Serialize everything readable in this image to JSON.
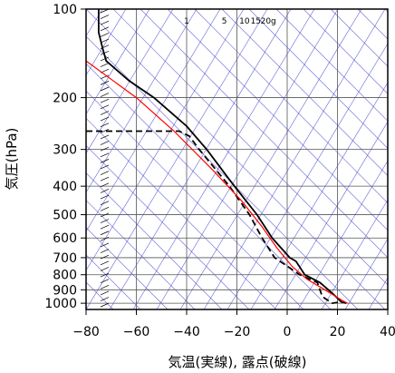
{
  "chart_data": {
    "type": "line",
    "subtype": "skew-T log-P thermodynamic diagram",
    "xlabel": "気温(実線), 露点(破線)",
    "ylabel": "気圧(hPa)",
    "xlim": [
      -80,
      40
    ],
    "ylim": [
      1050,
      100
    ],
    "y_scale": "log",
    "x_ticks": [
      -80,
      -60,
      -40,
      -20,
      0,
      20,
      40
    ],
    "y_ticks": [
      100,
      200,
      300,
      400,
      500,
      600,
      700,
      800,
      900,
      1000
    ],
    "grid": true,
    "mixing_ratio_labels": [
      {
        "label": "1",
        "temperature": -40
      },
      {
        "label": "5",
        "temperature": -25
      },
      {
        "label": "10",
        "temperature": -17
      },
      {
        "label": "15",
        "temperature": -12.5
      },
      {
        "label": "20g",
        "temperature": -7.5
      }
    ],
    "series": [
      {
        "style": "solid",
        "color": "#000000",
        "points": [
          {
            "t": -75,
            "p": 100
          },
          {
            "t": -75,
            "p": 120
          },
          {
            "t": -73.5,
            "p": 135
          },
          {
            "t": -72,
            "p": 150
          },
          {
            "t": -63,
            "p": 175
          },
          {
            "t": -53,
            "p": 200
          },
          {
            "t": -40,
            "p": 250
          },
          {
            "t": -32,
            "p": 300
          },
          {
            "t": -21,
            "p": 400
          },
          {
            "t": -12,
            "p": 500
          },
          {
            "t": -6,
            "p": 600
          },
          {
            "t": 1,
            "p": 700
          },
          {
            "t": 3.5,
            "p": 720
          },
          {
            "t": 7,
            "p": 800
          },
          {
            "t": 13,
            "p": 850
          },
          {
            "t": 18,
            "p": 925
          },
          {
            "t": 21.5,
            "p": 990
          },
          {
            "t": 23.5,
            "p": 1000
          }
        ]
      },
      {
        "style": "dashed",
        "color": "#000000",
        "points": [
          {
            "t": -80,
            "p": 260
          },
          {
            "t": -43,
            "p": 260
          },
          {
            "t": -39,
            "p": 270
          },
          {
            "t": -35,
            "p": 300
          },
          {
            "t": -23,
            "p": 400
          },
          {
            "t": -15,
            "p": 500
          },
          {
            "t": -10,
            "p": 600
          },
          {
            "t": -5,
            "p": 700
          },
          {
            "t": 5,
            "p": 800
          },
          {
            "t": 12,
            "p": 850
          },
          {
            "t": 14,
            "p": 950
          },
          {
            "t": 18,
            "p": 1000
          },
          {
            "t": 21,
            "p": 990
          }
        ]
      },
      {
        "style": "solid",
        "color": "#ff0000",
        "points": [
          {
            "t": -80,
            "p": 150
          },
          {
            "t": -60,
            "p": 200
          },
          {
            "t": -45,
            "p": 260
          },
          {
            "t": -30,
            "p": 350
          },
          {
            "t": -18,
            "p": 450
          },
          {
            "t": -10,
            "p": 550
          },
          {
            "t": -4,
            "p": 650
          },
          {
            "t": 2,
            "p": 750
          },
          {
            "t": 8,
            "p": 830
          },
          {
            "t": 15,
            "p": 900
          },
          {
            "t": 22,
            "p": 980
          },
          {
            "t": 24,
            "p": 1000
          }
        ]
      }
    ],
    "wind_barbs": {
      "pressure_top": 100,
      "pressure_bottom": 1000,
      "count": 50
    }
  }
}
